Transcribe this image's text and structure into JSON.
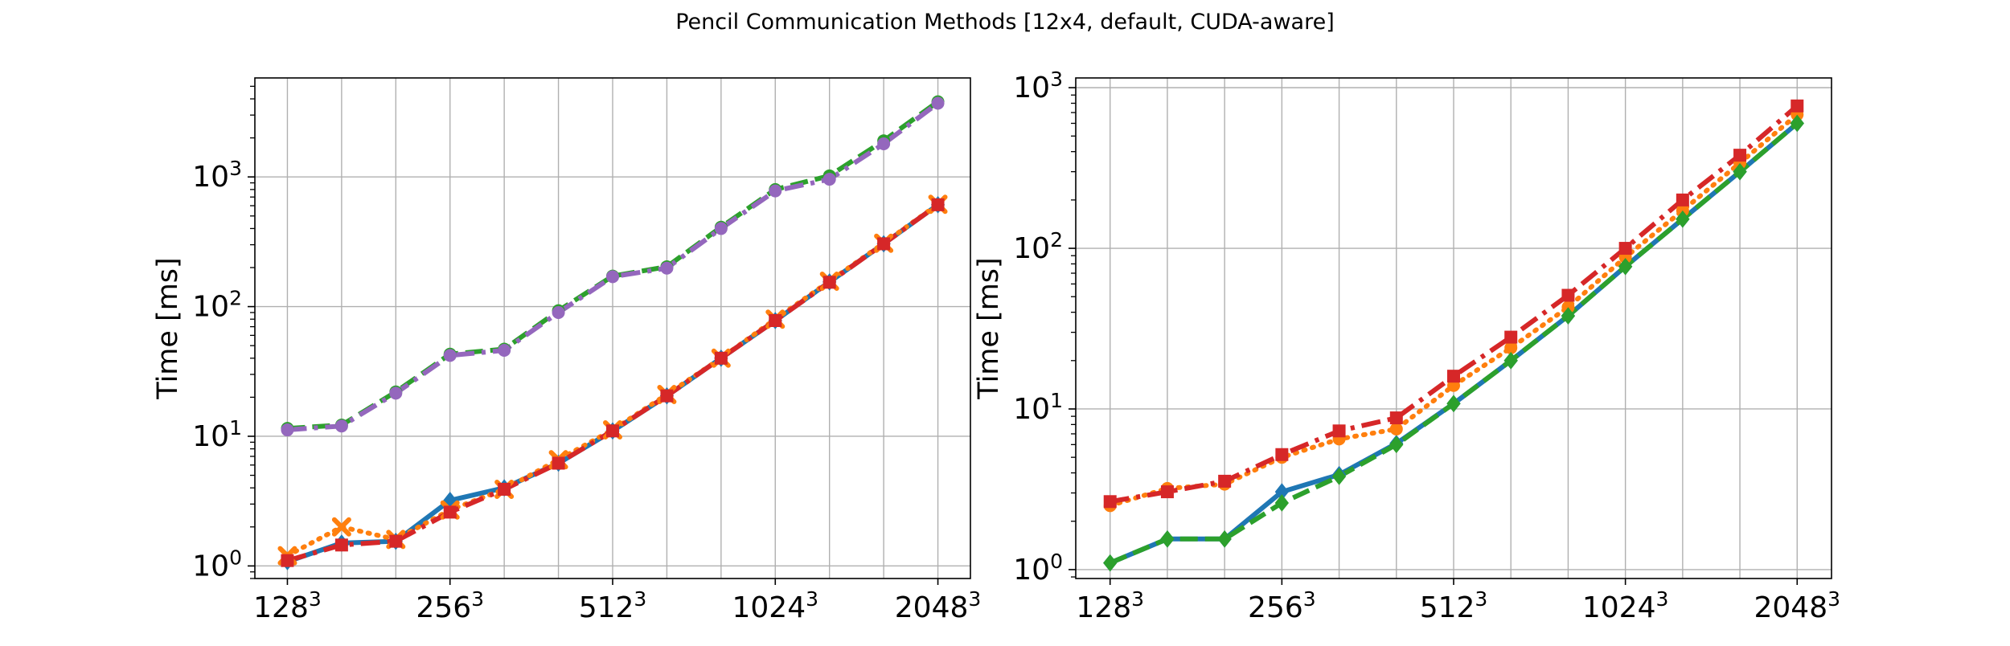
{
  "figure": {
    "title": "Pencil Communication Methods [12x4, default, CUDA-aware]"
  },
  "chart_data": [
    {
      "type": "line",
      "title": "",
      "xlabel": "",
      "ylabel": "Time [ms]",
      "yscale": "log",
      "ylim": [
        0.8,
        5800
      ],
      "xlim": [
        -0.6,
        12.6
      ],
      "grid": true,
      "x_tick_labels": [
        {
          "x": 0,
          "base": "128",
          "exp": "3"
        },
        {
          "x": 3,
          "base": "256",
          "exp": "3"
        },
        {
          "x": 6,
          "base": "512",
          "exp": "3"
        },
        {
          "x": 9,
          "base": "1024",
          "exp": "3"
        },
        {
          "x": 12,
          "base": "2048",
          "exp": "3"
        }
      ],
      "y_tick_labels": [
        {
          "y": 1,
          "base": "10",
          "exp": "0"
        },
        {
          "y": 10,
          "base": "10",
          "exp": "1"
        },
        {
          "y": 100,
          "base": "10",
          "exp": "2"
        },
        {
          "y": 1000,
          "base": "10",
          "exp": "3"
        }
      ],
      "x": [
        0,
        1,
        2,
        3,
        4,
        5,
        6,
        7,
        8,
        9,
        10,
        11,
        12
      ],
      "series": [
        {
          "color": "#1f77b4",
          "dash": "solid",
          "marker": "diamond",
          "values": [
            1.08,
            1.5,
            1.55,
            3.2,
            4.0,
            6.2,
            11.0,
            20.5,
            40,
            78,
            155,
            305,
            610
          ]
        },
        {
          "color": "#ff7f0e",
          "dash": "dotted",
          "marker": "x",
          "values": [
            1.2,
            2.0,
            1.6,
            2.7,
            3.9,
            6.6,
            11.2,
            21,
            40,
            80,
            157,
            308,
            615
          ]
        },
        {
          "color": "#2ca02c",
          "dash": "dashed",
          "marker": "circle",
          "values": [
            11.5,
            12.2,
            22,
            43,
            47,
            93,
            172,
            203,
            410,
            800,
            1020,
            1900,
            3800
          ]
        },
        {
          "color": "#d62728",
          "dash": "dashdot",
          "marker": "square",
          "values": [
            1.1,
            1.45,
            1.55,
            2.6,
            3.9,
            6.2,
            11.0,
            20.5,
            40,
            78,
            154,
            305,
            610
          ]
        },
        {
          "color": "#9467bd",
          "dash": "dashdot",
          "marker": "circle",
          "values": [
            11.2,
            12.0,
            21.5,
            42,
            46,
            90,
            170,
            198,
            400,
            780,
            960,
            1800,
            3700
          ]
        }
      ]
    },
    {
      "type": "line",
      "title": "",
      "xlabel": "",
      "ylabel": "Time [ms]",
      "yscale": "log",
      "ylim": [
        0.88,
        1150
      ],
      "xlim": [
        -0.6,
        12.6
      ],
      "grid": true,
      "x_tick_labels": [
        {
          "x": 0,
          "base": "128",
          "exp": "3"
        },
        {
          "x": 3,
          "base": "256",
          "exp": "3"
        },
        {
          "x": 6,
          "base": "512",
          "exp": "3"
        },
        {
          "x": 9,
          "base": "1024",
          "exp": "3"
        },
        {
          "x": 12,
          "base": "2048",
          "exp": "3"
        }
      ],
      "y_tick_labels": [
        {
          "y": 1,
          "base": "10",
          "exp": "0"
        },
        {
          "y": 10,
          "base": "10",
          "exp": "1"
        },
        {
          "y": 100,
          "base": "10",
          "exp": "2"
        },
        {
          "y": 1000,
          "base": "10",
          "exp": "3"
        }
      ],
      "x": [
        0,
        1,
        2,
        3,
        4,
        5,
        6,
        7,
        8,
        9,
        10,
        11,
        12
      ],
      "series": [
        {
          "color": "#1f77b4",
          "dash": "solid",
          "marker": "diamond",
          "values": [
            1.1,
            1.55,
            1.55,
            3.05,
            3.9,
            6.1,
            10.8,
            20,
            38,
            77,
            152,
            300,
            600
          ]
        },
        {
          "color": "#ff7f0e",
          "dash": "dotted",
          "marker": "circle",
          "values": [
            2.5,
            3.2,
            3.4,
            5.0,
            6.5,
            7.5,
            14,
            24,
            43,
            88,
            172,
            340,
            680
          ]
        },
        {
          "color": "#2ca02c",
          "dash": "dashed",
          "marker": "diamond",
          "values": [
            1.1,
            1.55,
            1.55,
            2.6,
            3.8,
            6.0,
            10.8,
            20,
            38,
            77,
            152,
            300,
            600
          ]
        },
        {
          "color": "#d62728",
          "dash": "dashdot",
          "marker": "square",
          "values": [
            2.65,
            3.05,
            3.55,
            5.2,
            7.3,
            8.8,
            16,
            28,
            51,
            100,
            200,
            380,
            770
          ]
        }
      ]
    }
  ]
}
